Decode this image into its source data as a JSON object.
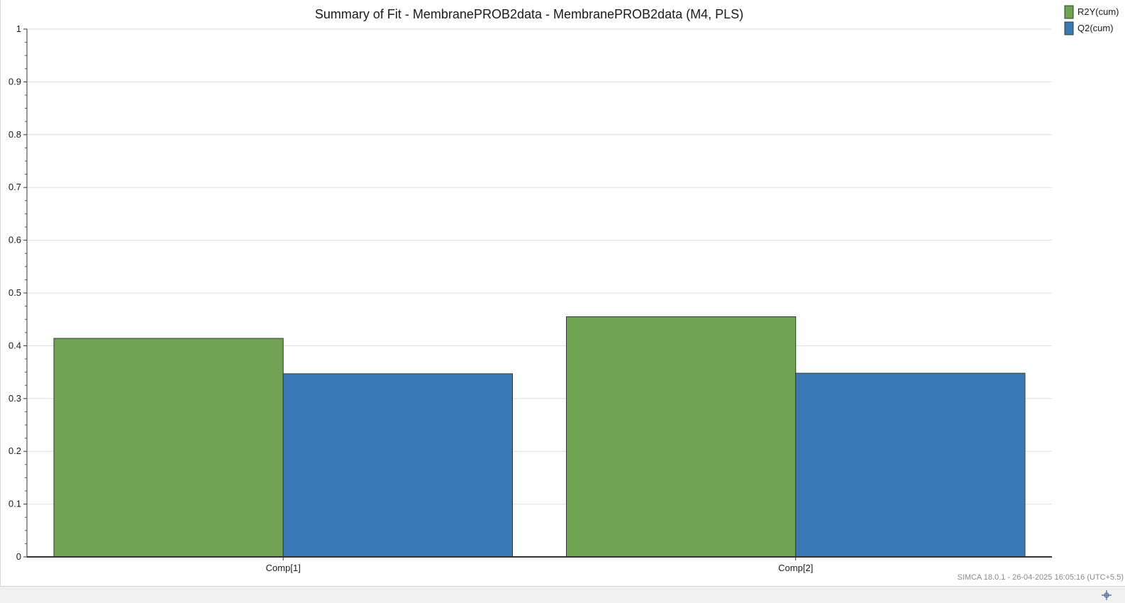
{
  "chart_data": {
    "type": "bar",
    "title": "Summary of Fit - MembranePROB2data - MembranePROB2data (M4, PLS)",
    "categories": [
      "Comp[1]",
      "Comp[2]"
    ],
    "series": [
      {
        "name": "R2Y(cum)",
        "values": [
          0.414,
          0.455
        ],
        "color": "#70a454"
      },
      {
        "name": "Q2(cum)",
        "values": [
          0.347,
          0.348
        ],
        "color": "#3b78b6"
      }
    ],
    "ylim": [
      0,
      1
    ],
    "yticks": [
      "0",
      "0.1",
      "0.2",
      "0.3",
      "0.4",
      "0.5",
      "0.6",
      "0.7",
      "0.8",
      "0.9",
      "1"
    ],
    "grid": true,
    "legend_position": "top-right"
  },
  "footer": {
    "stamp": "SIMCA 18.0.1 - 26-04-2025 16:05:16 (UTC+5.5)"
  },
  "status_bar": {
    "crosshair_icon": "crosshair-icon"
  }
}
